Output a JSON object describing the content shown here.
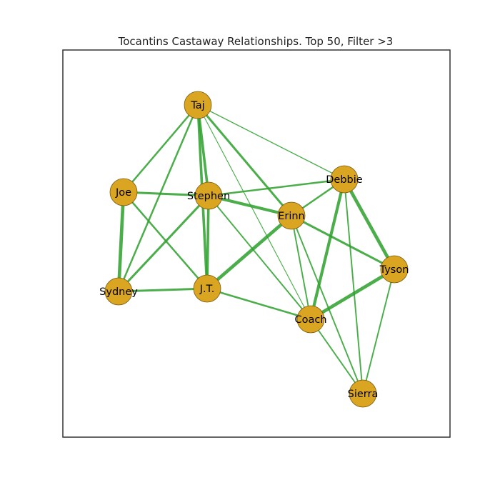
{
  "figure": {
    "title": "Tocantins Castaway Relationships. Top 50, Filter >3",
    "node_color": "#DAA520",
    "node_stroke": "#7a5a10",
    "edge_color": "#2ca02c",
    "frame_color": "#333333"
  },
  "nodes": [
    {
      "id": "Taj",
      "label": "Taj"
    },
    {
      "id": "Joe",
      "label": "Joe"
    },
    {
      "id": "Stephen",
      "label": "Stephen"
    },
    {
      "id": "Debbie",
      "label": "Debbie"
    },
    {
      "id": "Erinn",
      "label": "Erinn"
    },
    {
      "id": "Tyson",
      "label": "Tyson"
    },
    {
      "id": "Sydney",
      "label": "Sydney"
    },
    {
      "id": "JT",
      "label": "J.T."
    },
    {
      "id": "Coach",
      "label": "Coach"
    },
    {
      "id": "Sierra",
      "label": "Sierra"
    }
  ],
  "edges": [
    {
      "source": "Taj",
      "target": "Joe",
      "weight": 4
    },
    {
      "source": "Taj",
      "target": "Stephen",
      "weight": 6
    },
    {
      "source": "Taj",
      "target": "JT",
      "weight": 6
    },
    {
      "source": "Taj",
      "target": "Sydney",
      "weight": 4
    },
    {
      "source": "Taj",
      "target": "Erinn",
      "weight": 5
    },
    {
      "source": "Taj",
      "target": "Debbie",
      "weight": 2
    },
    {
      "source": "Taj",
      "target": "Coach",
      "weight": 1.5
    },
    {
      "source": "Joe",
      "target": "Stephen",
      "weight": 5
    },
    {
      "source": "Joe",
      "target": "Sydney",
      "weight": 8
    },
    {
      "source": "Joe",
      "target": "JT",
      "weight": 4
    },
    {
      "source": "Stephen",
      "target": "Sydney",
      "weight": 5
    },
    {
      "source": "Stephen",
      "target": "JT",
      "weight": 6
    },
    {
      "source": "Stephen",
      "target": "Erinn",
      "weight": 7
    },
    {
      "source": "Stephen",
      "target": "Debbie",
      "weight": 4
    },
    {
      "source": "Stephen",
      "target": "Coach",
      "weight": 3
    },
    {
      "source": "Sydney",
      "target": "JT",
      "weight": 5
    },
    {
      "source": "JT",
      "target": "Erinn",
      "weight": 8
    },
    {
      "source": "JT",
      "target": "Coach",
      "weight": 4
    },
    {
      "source": "Erinn",
      "target": "Debbie",
      "weight": 4
    },
    {
      "source": "Erinn",
      "target": "Coach",
      "weight": 3
    },
    {
      "source": "Erinn",
      "target": "Sierra",
      "weight": 3
    },
    {
      "source": "Erinn",
      "target": "Tyson",
      "weight": 5
    },
    {
      "source": "Debbie",
      "target": "Coach",
      "weight": 7
    },
    {
      "source": "Debbie",
      "target": "Tyson",
      "weight": 8
    },
    {
      "source": "Debbie",
      "target": "Sierra",
      "weight": 3
    },
    {
      "source": "Coach",
      "target": "Tyson",
      "weight": 8
    },
    {
      "source": "Coach",
      "target": "Sierra",
      "weight": 3
    },
    {
      "source": "Tyson",
      "target": "Sierra",
      "weight": 3
    }
  ]
}
